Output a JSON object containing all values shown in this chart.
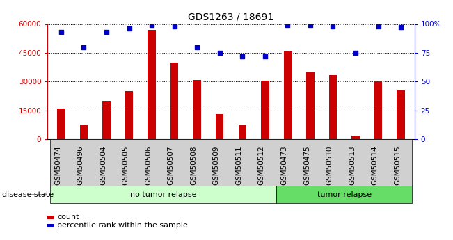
{
  "title": "GDS1263 / 18691",
  "categories": [
    "GSM50474",
    "GSM50496",
    "GSM50504",
    "GSM50505",
    "GSM50506",
    "GSM50507",
    "GSM50508",
    "GSM50509",
    "GSM50511",
    "GSM50512",
    "GSM50473",
    "GSM50475",
    "GSM50510",
    "GSM50513",
    "GSM50514",
    "GSM50515"
  ],
  "bar_values": [
    16000,
    7500,
    20000,
    25000,
    57000,
    40000,
    31000,
    13000,
    7500,
    30500,
    46000,
    35000,
    33500,
    2000,
    30000,
    25500
  ],
  "percentile_values": [
    93,
    80,
    93,
    96,
    99,
    98,
    80,
    75,
    72,
    72,
    99,
    99,
    98,
    75,
    98,
    97
  ],
  "bar_color": "#cc0000",
  "percentile_color": "#0000cc",
  "ylim_left": [
    0,
    60000
  ],
  "ylim_right": [
    0,
    100
  ],
  "yticks_left": [
    0,
    15000,
    30000,
    45000,
    60000
  ],
  "ytick_labels_left": [
    "0",
    "15000",
    "30000",
    "45000",
    "60000"
  ],
  "yticks_right": [
    0,
    25,
    50,
    75,
    100
  ],
  "ytick_labels_right": [
    "0",
    "25",
    "50",
    "75",
    "100%"
  ],
  "group1_label": "no tumor relapse",
  "group2_label": "tumor relapse",
  "group1_count": 10,
  "group2_count": 6,
  "disease_state_label": "disease state",
  "legend_count_label": "count",
  "legend_percentile_label": "percentile rank within the sample",
  "background_color": "#ffffff",
  "plot_bg_color": "#ffffff",
  "xtick_bg_color": "#d0d0d0",
  "group1_color": "#ccffcc",
  "group2_color": "#66dd66",
  "title_fontsize": 10,
  "tick_label_fontsize": 7.5,
  "legend_fontsize": 8
}
